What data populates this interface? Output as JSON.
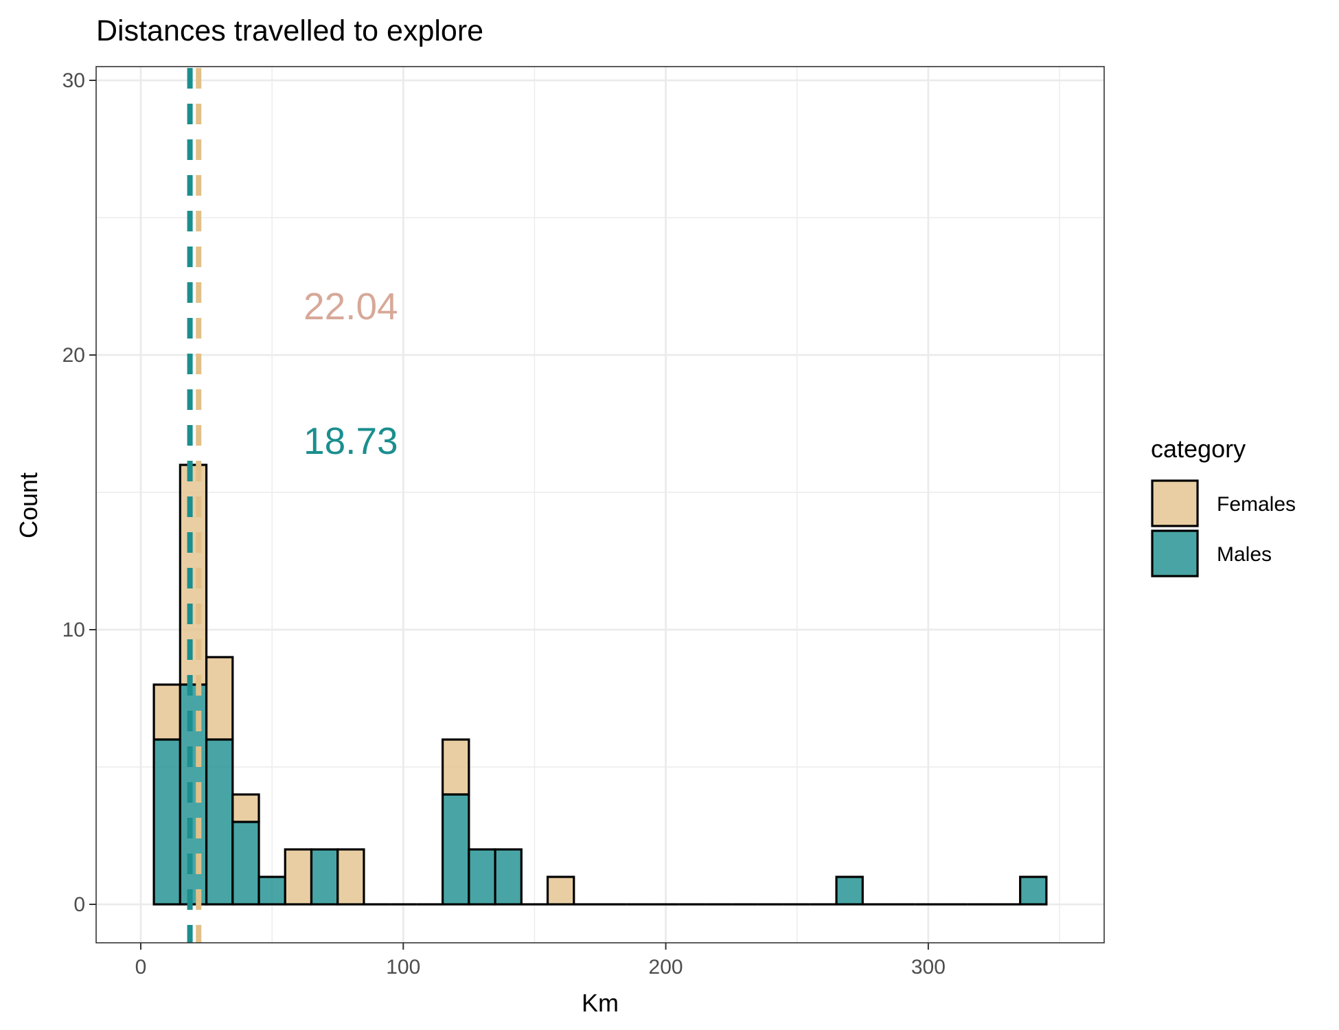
{
  "chart_data": {
    "type": "bar",
    "subtype": "stacked-histogram",
    "title": "Distances travelled to explore",
    "xlabel": "Km",
    "ylabel": "Count",
    "xlim": [
      -17,
      367
    ],
    "ylim": [
      -1.4,
      30.5
    ],
    "x_ticks": [
      0,
      100,
      200,
      300
    ],
    "y_ticks": [
      0,
      10,
      20,
      30
    ],
    "grid": true,
    "legend": {
      "title": "category",
      "position": "right",
      "entries": [
        "Females",
        "Males"
      ]
    },
    "bin_edges": [
      5,
      15,
      25,
      35,
      45,
      55,
      65,
      75,
      85,
      95,
      105,
      115,
      125,
      135,
      145,
      155,
      165,
      175,
      185,
      195,
      205,
      215,
      225,
      235,
      245,
      255,
      265,
      275,
      285,
      295,
      305,
      315,
      325,
      335,
      345
    ],
    "series": [
      {
        "name": "Males",
        "color": "#1b8e8e",
        "values": [
          6,
          8,
          6,
          3,
          1,
          0,
          2,
          0,
          0,
          0,
          0,
          4,
          2,
          2,
          0,
          0,
          0,
          0,
          0,
          0,
          0,
          0,
          0,
          0,
          0,
          0,
          1,
          0,
          0,
          0,
          0,
          0,
          0,
          1
        ]
      },
      {
        "name": "Females",
        "color": "#e2c088",
        "values": [
          2,
          8,
          3,
          1,
          0,
          2,
          0,
          2,
          0,
          0,
          0,
          2,
          0,
          0,
          0,
          1,
          0,
          0,
          0,
          0,
          0,
          0,
          0,
          0,
          0,
          0,
          0,
          0,
          0,
          0,
          0,
          0,
          0,
          0
        ]
      }
    ],
    "mean_lines": [
      {
        "series": "Females",
        "value": 22.04,
        "color": "#e2c088"
      },
      {
        "series": "Males",
        "value": 18.73,
        "color": "#1b8e8e"
      }
    ],
    "annotations": [
      {
        "text": "22.04",
        "x": 62,
        "y": 21.3,
        "color": "#d7a898"
      },
      {
        "text": "18.73",
        "x": 62,
        "y": 16.4,
        "color": "#1b8e8e"
      }
    ]
  }
}
